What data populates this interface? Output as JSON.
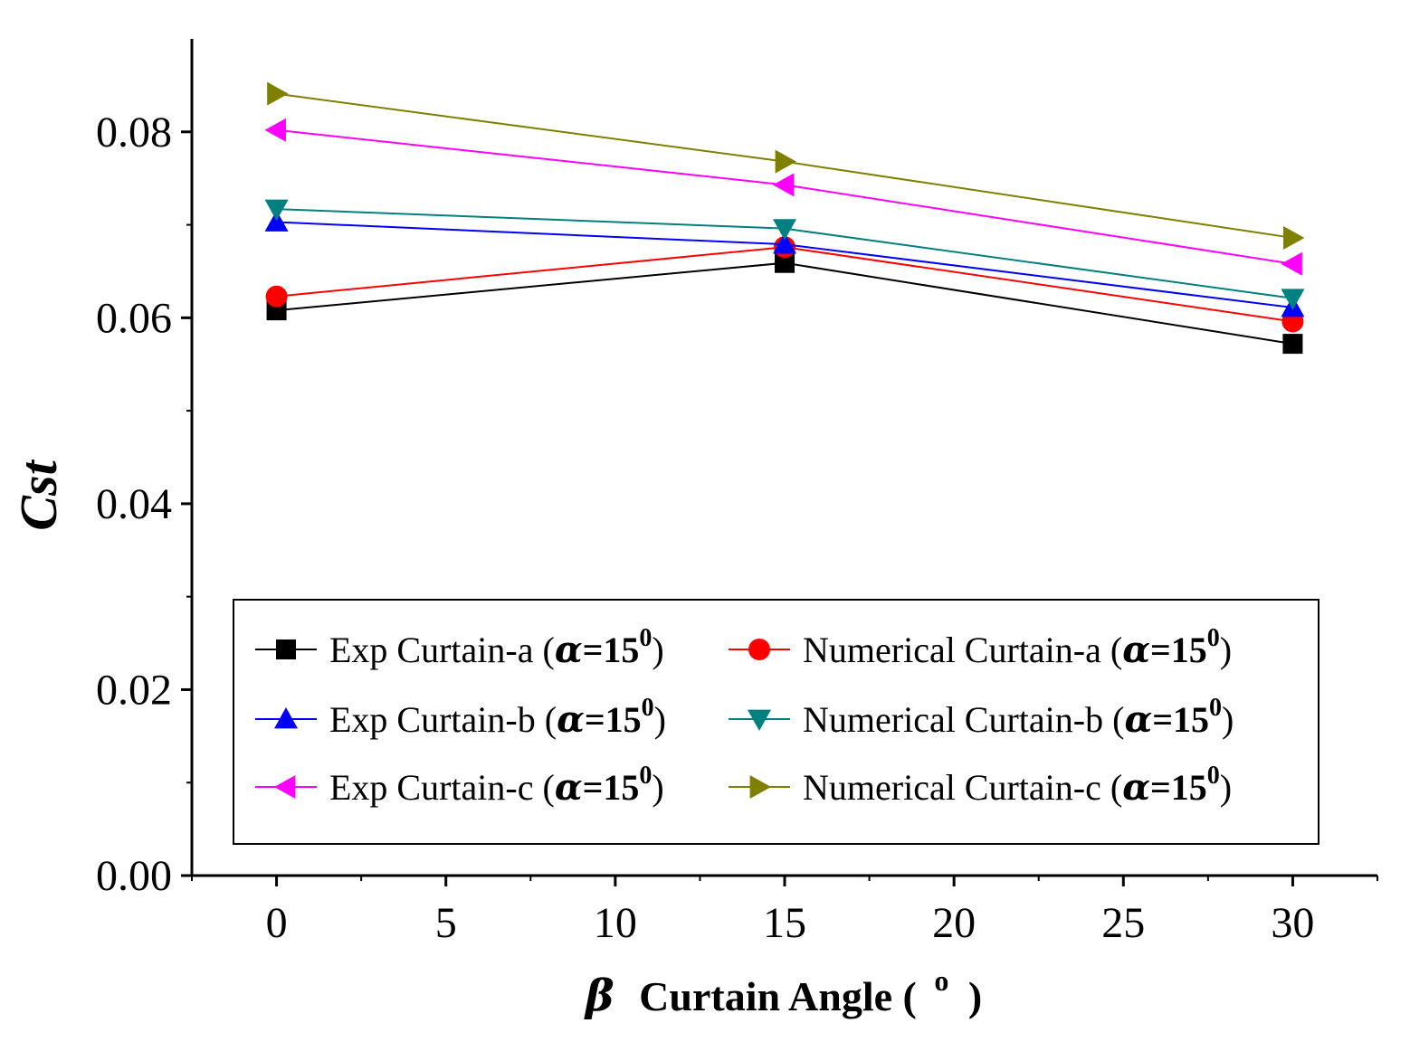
{
  "chart_data": {
    "type": "line",
    "xlabel": {
      "symbol": "β",
      "text": "Curtain Angle (",
      "superscript": "o",
      "close": ")"
    },
    "ylabel": "Cst",
    "xlim": [
      -2.5,
      32.5
    ],
    "ylim": [
      0,
      0.09
    ],
    "x_ticks": [
      0,
      5,
      10,
      15,
      20,
      25,
      30
    ],
    "x_tick_labels": [
      "0",
      "5",
      "10",
      "15",
      "20",
      "25",
      "30"
    ],
    "y_ticks": [
      0,
      0.02,
      0.04,
      0.06,
      0.08
    ],
    "y_tick_labels": [
      "0.00",
      "0.02",
      "0.04",
      "0.06",
      "0.08"
    ],
    "grid": false,
    "legend_placement": "bottom",
    "x": [
      0,
      15,
      30
    ],
    "series": [
      {
        "name": "Exp Curtain-a",
        "name_prefix": "Exp Curtain-a (",
        "values": [
          0.0608,
          0.0659,
          0.0572
        ],
        "color": "#000000",
        "marker": "square"
      },
      {
        "name": "Numerical  Curtain-a",
        "name_prefix": "Numerical  Curtain-a (",
        "values": [
          0.0623,
          0.0676,
          0.0596
        ],
        "color": "#ff0000",
        "marker": "circle"
      },
      {
        "name": "Exp Curtain-b",
        "name_prefix": "Exp Curtain-b (",
        "values": [
          0.0703,
          0.0679,
          0.0611
        ],
        "color": "#0000ff",
        "marker": "triangle-up"
      },
      {
        "name": "Numerical  Curtain-b",
        "name_prefix": "Numerical  Curtain-b (",
        "values": [
          0.0717,
          0.0696,
          0.0621
        ],
        "color": "#008080",
        "marker": "triangle-down"
      },
      {
        "name": "Exp Curtain-c",
        "name_prefix": "Exp Curtain-c (",
        "values": [
          0.0802,
          0.0743,
          0.0658
        ],
        "color": "#ff00ff",
        "marker": "triangle-left"
      },
      {
        "name": "Numerical  Curtain-c",
        "name_prefix": "Numerical  Curtain-c (",
        "values": [
          0.0841,
          0.0768,
          0.0686
        ],
        "color": "#808000",
        "marker": "triangle-right"
      }
    ],
    "legend_suffix": {
      "symbol": "α",
      "text": "=15",
      "superscript": "0",
      "close": ")"
    }
  }
}
